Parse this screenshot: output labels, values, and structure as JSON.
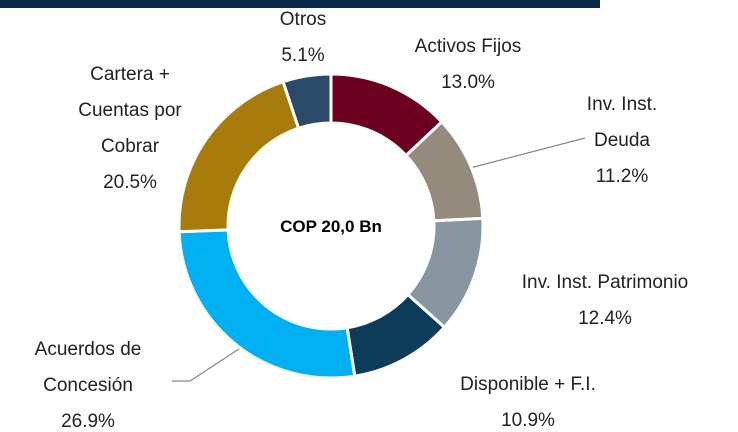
{
  "chart_data": {
    "type": "pie",
    "donut": true,
    "center_label": "COP 20,0 Bn",
    "categories": [
      "Activos Fijos",
      "Inv. Inst. Deuda",
      "Inv. Inst. Patrimonio",
      "Disponible + F.I.",
      "Acuerdos de Concesión",
      "Cartera + Cuentas por Cobrar",
      "Otros"
    ],
    "values": [
      13.0,
      11.2,
      12.4,
      10.9,
      26.9,
      20.5,
      5.1
    ],
    "value_labels": [
      "13.0%",
      "11.2%",
      "12.4%",
      "10.9%",
      "26.9%",
      "20.5%",
      "5.1%"
    ],
    "colors": [
      "#6b0020",
      "#958b7c",
      "#8796a1",
      "#0d3b5a",
      "#00b0f0",
      "#a87c0c",
      "#2c4a6a"
    ]
  }
}
